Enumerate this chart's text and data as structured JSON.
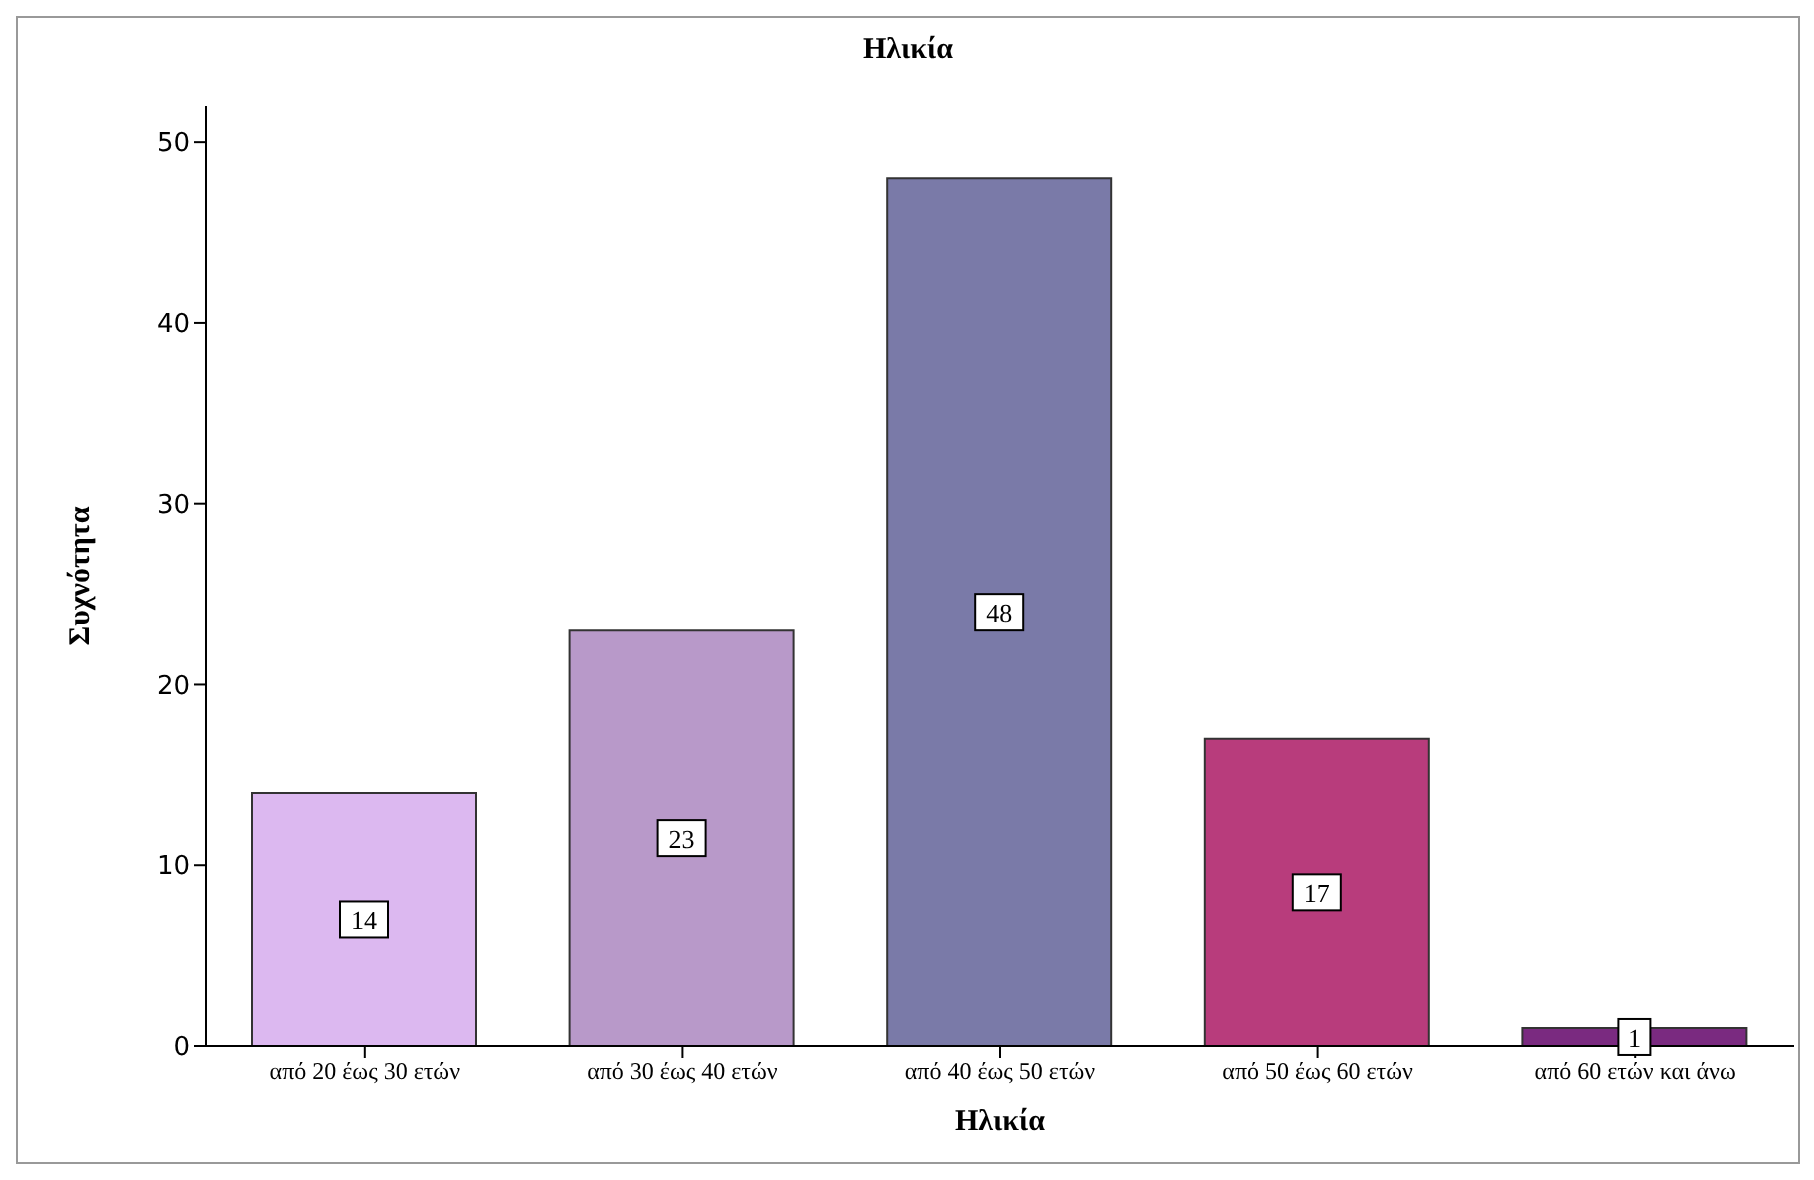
{
  "chart_data": {
    "type": "bar",
    "title": "Ηλικία",
    "xlabel": "Ηλικία",
    "ylabel": "Συχνότητα",
    "categories": [
      "από 20 έως 30 ετών",
      "από 30 έως 40 ετών",
      "από 40 έως 50 ετών",
      "από 50 έως 60 ετών",
      "από 60 ετών και άνω"
    ],
    "values": [
      14,
      23,
      48,
      17,
      1
    ],
    "colors": [
      "#dcb8f0",
      "#b899c9",
      "#7a7aa8",
      "#b83c7c",
      "#7a2a80"
    ],
    "ylim": [
      0,
      52
    ],
    "yticks": [
      0,
      10,
      20,
      30,
      40,
      50
    ],
    "grid": false,
    "data_labels": true
  }
}
